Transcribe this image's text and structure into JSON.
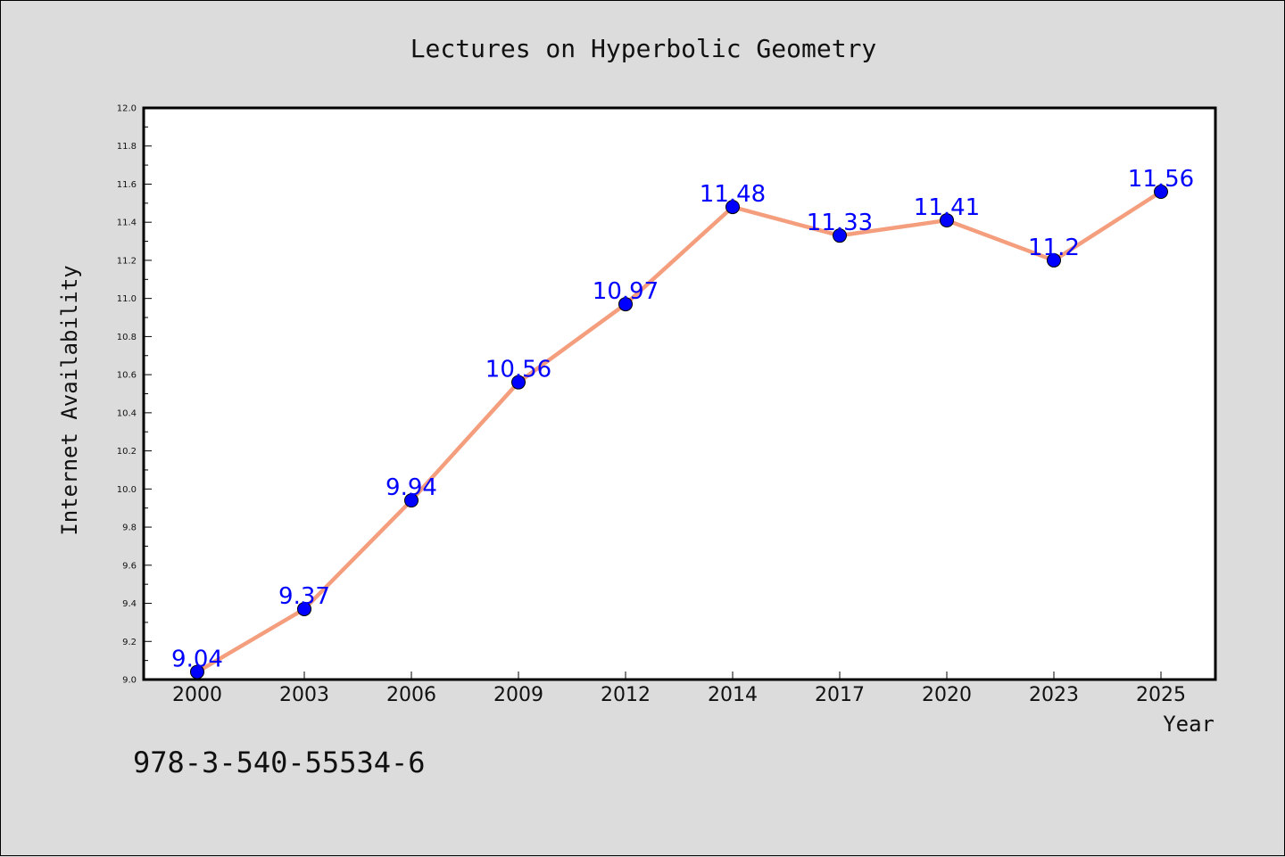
{
  "chart_data": {
    "type": "line",
    "title": "Lectures on Hyperbolic Geometry",
    "xlabel": "Year",
    "ylabel": "Internet Availability",
    "categories": [
      "2000",
      "2003",
      "2006",
      "2009",
      "2012",
      "2014",
      "2017",
      "2020",
      "2023",
      "2025"
    ],
    "series": [
      {
        "values": [
          9.04,
          9.37,
          9.94,
          10.56,
          10.97,
          11.48,
          11.33,
          11.41,
          11.2,
          11.56
        ]
      }
    ],
    "data_labels": [
      "9.04",
      "9.37",
      "9.94",
      "10.56",
      "10.97",
      "11.48",
      "11.33",
      "11.41",
      "11.2",
      "11.56"
    ],
    "ylim": [
      9.0,
      12.0
    ],
    "yticks": [
      "9.0",
      "9.2",
      "9.4",
      "9.6",
      "9.8",
      "10.0",
      "10.2",
      "10.4",
      "10.6",
      "10.8",
      "11.0",
      "11.2",
      "11.4",
      "11.6",
      "11.8",
      "12.0"
    ],
    "grid": false,
    "line_color": "#f59e7d",
    "marker_color": "#0000ff",
    "label_color": "#0000ff",
    "annotation": "978-3-540-55534-6"
  }
}
